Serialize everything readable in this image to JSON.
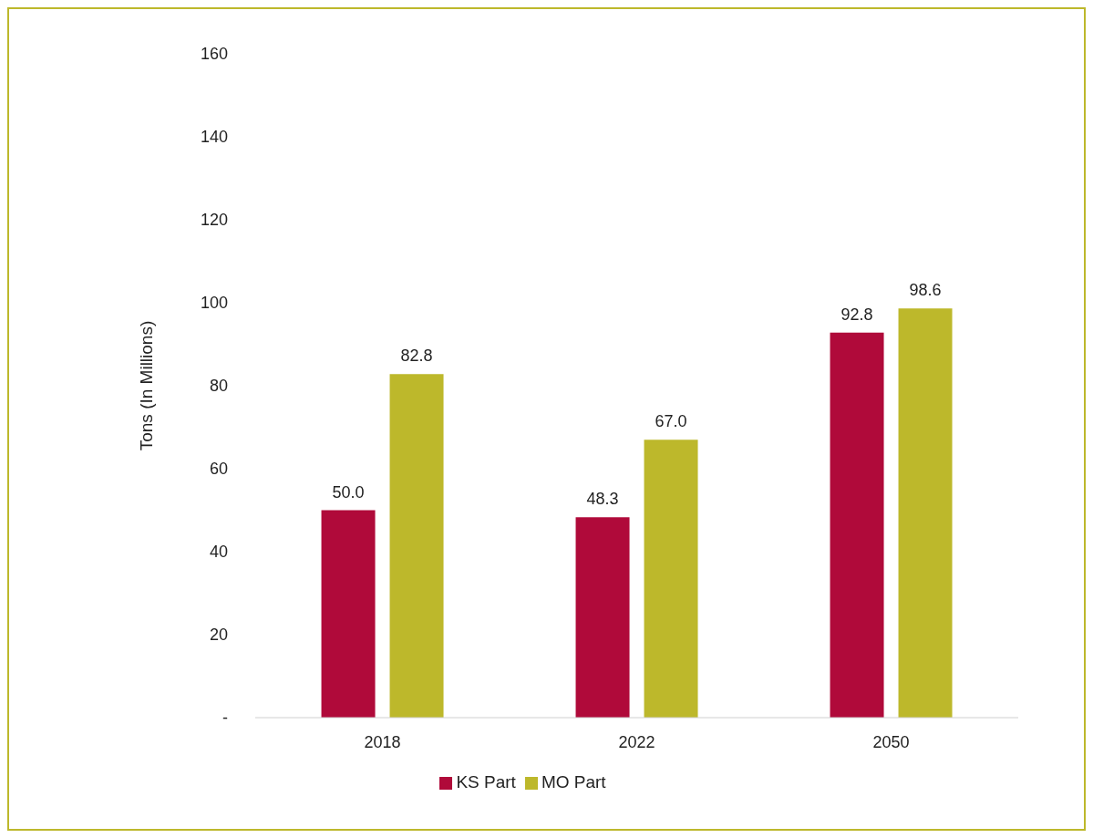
{
  "chart_data": {
    "type": "bar",
    "ylabel": "Tons (In Millions)",
    "categories": [
      "2018",
      "2022",
      "2050"
    ],
    "series": [
      {
        "name": "KS Part",
        "color": "#b00a3a",
        "values": [
          50.0,
          48.3,
          92.8
        ],
        "value_labels": [
          "50.0",
          "48.3",
          "92.8"
        ]
      },
      {
        "name": "MO Part",
        "color": "#bdb82b",
        "values": [
          82.8,
          67.0,
          98.6
        ],
        "value_labels": [
          "82.8",
          "67.0",
          "98.6"
        ]
      }
    ],
    "ylim": [
      0,
      160
    ],
    "yticks": [
      {
        "value": 0,
        "label": "-"
      },
      20,
      40,
      60,
      80,
      100,
      120,
      140,
      160
    ],
    "grid": false,
    "legend": "bottom"
  }
}
